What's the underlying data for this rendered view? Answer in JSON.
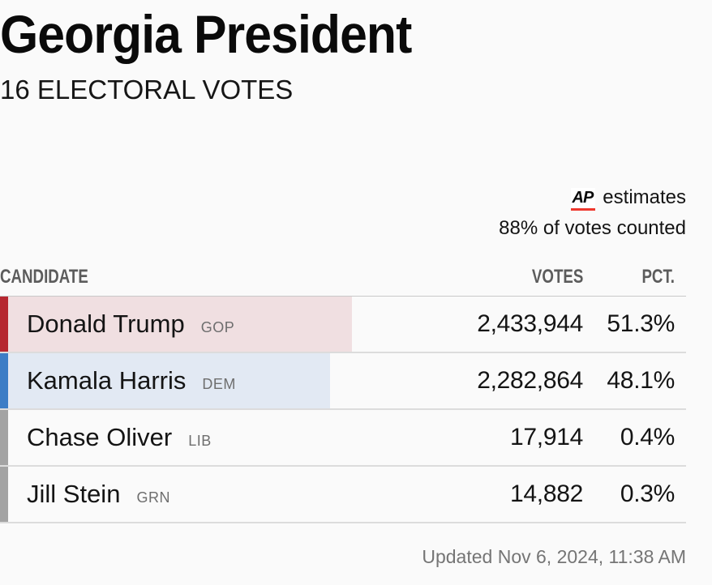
{
  "header": {
    "title": "Georgia President",
    "subtitle": "16 ELECTORAL VOTES"
  },
  "meta": {
    "ap_logo": "AP",
    "estimates_label": "estimates",
    "counted_status": "88% of votes counted",
    "ap_underline_color": "#ee372d"
  },
  "table": {
    "columns": {
      "candidate": "CANDIDATE",
      "votes": "VOTES",
      "pct": "PCT."
    },
    "rows": [
      {
        "name": "Donald Trump",
        "party": "GOP",
        "votes": "2,433,944",
        "pct": "51.3%",
        "pct_value": 51.3,
        "accent_color": "#b62730",
        "fill_color": "#f0dfe1"
      },
      {
        "name": "Kamala Harris",
        "party": "DEM",
        "votes": "2,282,864",
        "pct": "48.1%",
        "pct_value": 48.1,
        "accent_color": "#3c7dc6",
        "fill_color": "#e2e9f3"
      },
      {
        "name": "Chase Oliver",
        "party": "LIB",
        "votes": "17,914",
        "pct": "0.4%",
        "pct_value": 0.4,
        "accent_color": "#a3a3a3",
        "fill_color": "transparent"
      },
      {
        "name": "Jill Stein",
        "party": "GRN",
        "votes": "14,882",
        "pct": "0.3%",
        "pct_value": 0.3,
        "accent_color": "#a3a3a3",
        "fill_color": "transparent"
      }
    ]
  },
  "footer": {
    "updated": "Updated Nov 6, 2024, 11:38 AM"
  },
  "chart_data": {
    "type": "bar",
    "orientation": "horizontal",
    "title": "Georgia President",
    "subtitle": "16 ELECTORAL VOTES",
    "categories": [
      "Donald Trump (GOP)",
      "Kamala Harris (DEM)",
      "Chase Oliver (LIB)",
      "Jill Stein (GRN)"
    ],
    "series": [
      {
        "name": "Votes",
        "values": [
          2433944,
          2282864,
          17914,
          14882
        ]
      },
      {
        "name": "Percent",
        "values": [
          51.3,
          48.1,
          0.4,
          0.3
        ]
      }
    ],
    "bar_colors": [
      "#b62730",
      "#3c7dc6",
      "#a3a3a3",
      "#a3a3a3"
    ],
    "xlim": [
      0,
      100
    ],
    "annotations": [
      "AP estimates",
      "88% of votes counted",
      "Updated Nov 6, 2024, 11:38 AM"
    ]
  }
}
